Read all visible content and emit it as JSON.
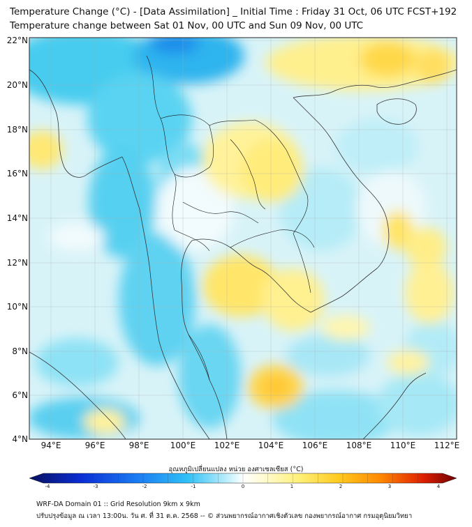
{
  "title": {
    "line1": "Temperature Change (°C) - [Data Assimilation] _ Initial Time : Friday 31 Oct, 06 UTC FCST+192",
    "line2": "Temperature change between Sat 01 Nov, 00 UTC and Sun 09 Nov, 00 UTC"
  },
  "map": {
    "region": "Thailand and Indochina",
    "lat_labels": [
      "22°N",
      "20°N",
      "18°N",
      "16°N",
      "14°N",
      "12°N",
      "10°N",
      "8°N",
      "6°N",
      "4°N"
    ],
    "lon_labels": [
      "94°E",
      "96°E",
      "98°E",
      "100°E",
      "102°E",
      "104°E",
      "106°E",
      "108°E",
      "110°E",
      "112°E"
    ]
  },
  "colorbar": {
    "title": "อุณหภูมิเปลี่ยนแปลง หน่วย องศาเซลเซียส (°C)",
    "ticks": [
      "-4",
      "-3",
      "-2",
      "-1",
      "0",
      "1",
      "2",
      "3",
      "4"
    ],
    "range": [
      -4,
      4
    ],
    "colors": [
      "#08105e",
      "#0a2dd4",
      "#1a66f0",
      "#2aa8f5",
      "#54d4f5",
      "#a8ecf8",
      "#f4fbff",
      "#ffffff",
      "#fffbd8",
      "#fff3a0",
      "#ffe050",
      "#ffbf1a",
      "#ff8a00",
      "#f24a00",
      "#d41000",
      "#7a0000"
    ]
  },
  "footer": {
    "line1": "WRF-DA Domain 01 :: Grid Resolution 9km x 9km",
    "line2": "ปรับปรุงข้อมูล ณ เวลา 13:00น. วัน ศ. ที่ 31 ต.ค. 2568 -- © ส่วนพยากรณ์อากาศเชิงตัวเลข กองพยากรณ์อากาศ กรมอุตุนิยมวิทยา"
  }
}
